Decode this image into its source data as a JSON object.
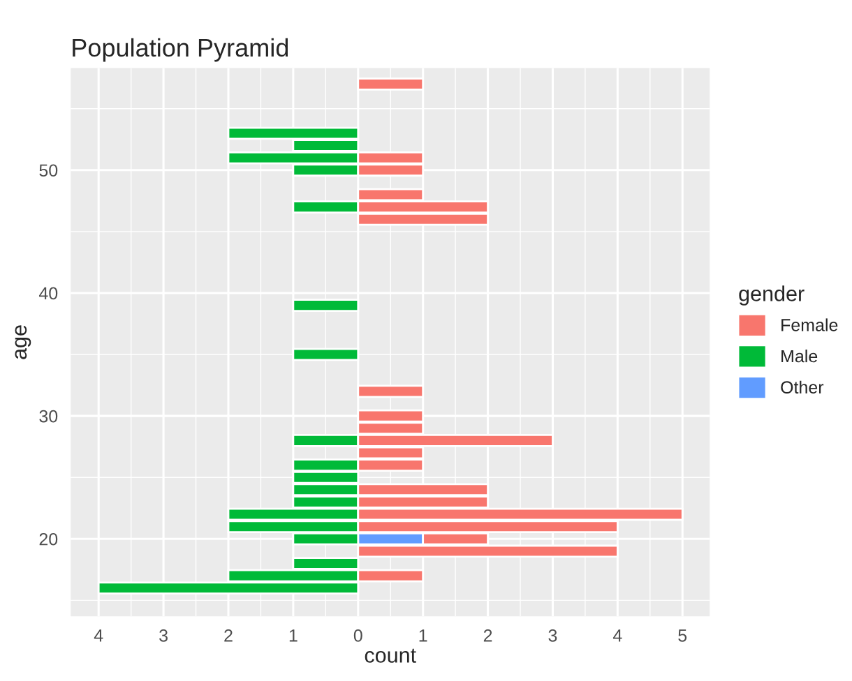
{
  "chart_data": {
    "type": "bar",
    "orientation": "horizontal",
    "stacked": true,
    "title": "Population Pyramid",
    "xlabel": "count",
    "ylabel": "age",
    "legend_title": "gender",
    "legend": "right",
    "grid": true,
    "x": [
      16,
      17,
      18,
      19,
      20,
      21,
      22,
      23,
      24,
      25,
      26,
      27,
      28,
      29,
      30,
      32,
      35,
      39,
      46,
      47,
      48,
      50,
      51,
      52,
      53,
      57
    ],
    "series": [
      {
        "name": "Other",
        "color": "#619cff",
        "values": [
          null,
          null,
          null,
          null,
          1,
          null,
          null,
          null,
          null,
          null,
          null,
          null,
          null,
          null,
          null,
          null,
          null,
          null,
          null,
          null,
          null,
          null,
          null,
          null,
          null,
          null
        ]
      },
      {
        "name": "Male",
        "color": "#00ba38",
        "values": [
          -4,
          -2,
          -1,
          null,
          -1,
          -2,
          -2,
          -1,
          -1,
          -1,
          -1,
          null,
          -1,
          null,
          null,
          null,
          -1,
          -1,
          null,
          -1,
          null,
          -1,
          -2,
          -1,
          -2,
          null
        ]
      },
      {
        "name": "Female",
        "color": "#f8766d",
        "values": [
          null,
          1,
          null,
          4,
          1,
          4,
          5,
          2,
          2,
          null,
          1,
          1,
          3,
          1,
          1,
          1,
          null,
          null,
          2,
          2,
          1,
          1,
          1,
          null,
          null,
          1
        ]
      }
    ],
    "xlim": [
      -4.43,
      5.42
    ],
    "xticks": [
      {
        "value": -4,
        "label": "4"
      },
      {
        "value": -3,
        "label": "3"
      },
      {
        "value": -2,
        "label": "2"
      },
      {
        "value": -1,
        "label": "1"
      },
      0,
      1,
      2,
      3,
      4,
      5
    ],
    "ylim": [
      13.7,
      58.3
    ],
    "yticks": [
      20,
      30,
      40,
      50
    ]
  }
}
